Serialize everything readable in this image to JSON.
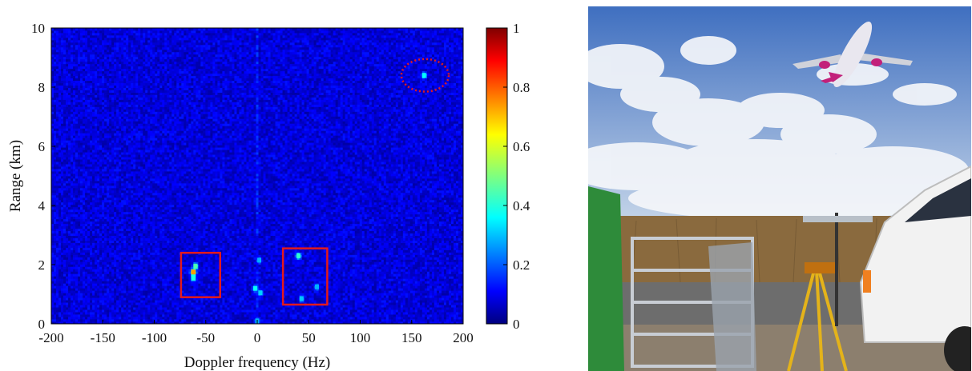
{
  "chart_data": {
    "type": "heatmap",
    "title": "",
    "xlabel": "Doppler frequency (Hz)",
    "ylabel": "Range (km)",
    "xlim": [
      -200,
      200
    ],
    "ylim": [
      0,
      10
    ],
    "xticks": [
      -200,
      -150,
      -100,
      -50,
      0,
      50,
      100,
      150,
      200
    ],
    "xtick_labels": [
      "-200",
      "-150",
      "-100",
      "-50",
      "0",
      "50",
      "100",
      "150",
      "200"
    ],
    "yticks": [
      0,
      2,
      4,
      6,
      8,
      10
    ],
    "ytick_labels": [
      "0",
      "2",
      "4",
      "6",
      "8",
      "10"
    ],
    "colormap": "jet",
    "colorbar": {
      "range": [
        0,
        1
      ],
      "ticks": [
        0,
        0.2,
        0.4,
        0.6,
        0.8,
        1
      ],
      "tick_labels": [
        "0",
        "0.2",
        "0.4",
        "0.6",
        "0.8",
        "1"
      ]
    },
    "background_level": 0.1,
    "hotspots": [
      {
        "doppler_hz": -62,
        "range_km": 1.75,
        "value": 0.72
      },
      {
        "doppler_hz": -60,
        "range_km": 1.95,
        "value": 0.45
      },
      {
        "doppler_hz": -62,
        "range_km": 1.55,
        "value": 0.4
      },
      {
        "doppler_hz": 40,
        "range_km": 2.3,
        "value": 0.42
      },
      {
        "doppler_hz": 43,
        "range_km": 0.85,
        "value": 0.32
      },
      {
        "doppler_hz": 58,
        "range_km": 1.25,
        "value": 0.3
      },
      {
        "doppler_hz": -2,
        "range_km": 1.2,
        "value": 0.38
      },
      {
        "doppler_hz": 3,
        "range_km": 1.05,
        "value": 0.33
      },
      {
        "doppler_hz": 2,
        "range_km": 2.15,
        "value": 0.3
      },
      {
        "doppler_hz": 0,
        "range_km": 0.1,
        "value": 0.3
      },
      {
        "doppler_hz": 162,
        "range_km": 8.4,
        "value": 0.38
      }
    ],
    "annotations": [
      {
        "shape": "rectangle",
        "color": "#e41a1c",
        "x_range": [
          -74,
          -36
        ],
        "y_range": [
          0.9,
          2.4
        ]
      },
      {
        "shape": "rectangle",
        "color": "#e41a1c",
        "x_range": [
          25,
          68
        ],
        "y_range": [
          0.65,
          2.55
        ]
      },
      {
        "shape": "ellipse",
        "color": "#e41a1c",
        "line_style": "dotted",
        "center": [
          163,
          8.4
        ],
        "radius_hz": 23,
        "radius_km": 0.55
      }
    ]
  },
  "photo": {
    "subject": "Airplane taking off over a roadside radar antenna setup",
    "colors": {
      "sky_top": "#3f6fc0",
      "sky_bottom": "#c9d8ea",
      "grass": "#8a6a3e",
      "road": "#6d6d6d",
      "fuselage": "#e9e7ef",
      "tail": "#c2207a",
      "van": "#f2f2f2",
      "tripod": "#e4b31a",
      "frame": "#2e8b3a"
    }
  }
}
